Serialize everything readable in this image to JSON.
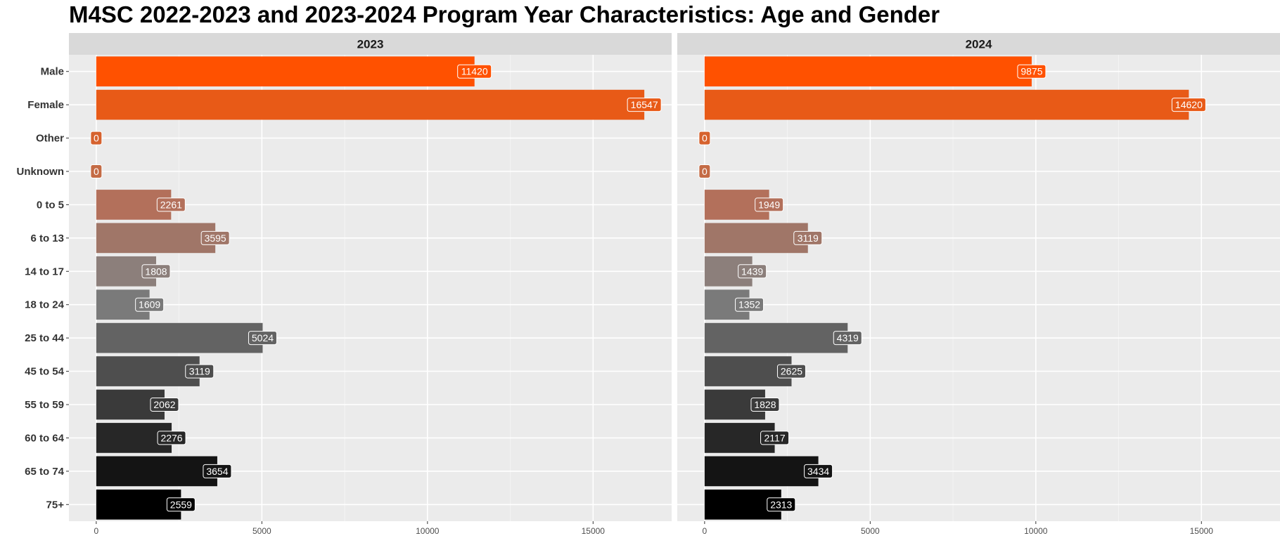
{
  "chart_data": {
    "type": "bar",
    "orientation": "horizontal",
    "title": "M4SC 2022-2023 and 2023-2024 Program Year Characteristics: Age and Gender",
    "categories": [
      "Male",
      "Female",
      "Other",
      "Unknown",
      "0 to 5",
      "6 to 13",
      "14 to 17",
      "18 to 24",
      "25 to 44",
      "45 to 54",
      "55 to 59",
      "60 to 64",
      "65 to 74",
      "75+"
    ],
    "bar_colors": [
      "#FF5100",
      "#E85A17",
      "#D6622E",
      "#C46B45",
      "#B3705B",
      "#A07668",
      "#8C7F7B",
      "#7A7A7A",
      "#636363",
      "#4E4E4E",
      "#3A3A3A",
      "#272727",
      "#141414",
      "#000000"
    ],
    "panels": [
      {
        "strip": "2023",
        "values": [
          11420,
          16547,
          0,
          0,
          2261,
          3595,
          1808,
          1609,
          5024,
          3119,
          2062,
          2276,
          3654,
          2559
        ]
      },
      {
        "strip": "2024",
        "values": [
          9875,
          14620,
          0,
          0,
          1949,
          3119,
          1439,
          1352,
          4319,
          2625,
          1828,
          2117,
          3434,
          2313
        ]
      }
    ],
    "xlim": [
      -825,
      17372
    ],
    "xticks": [
      0,
      5000,
      10000,
      15000
    ],
    "xlabel": "",
    "ylabel": "",
    "grid": true,
    "legend": "none"
  }
}
